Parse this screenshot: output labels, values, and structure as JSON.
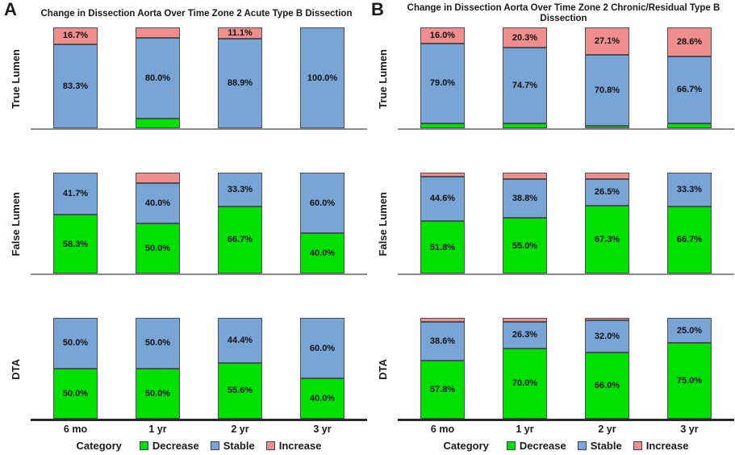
{
  "chart_data": {
    "type": "bar",
    "stacked": true,
    "orientation": "vertical",
    "unit": "percent",
    "ylim": [
      0,
      100
    ],
    "grid": false,
    "categories": [
      "6 mo",
      "1 yr",
      "2 yr",
      "3 yr"
    ],
    "x_axis_title": "Category",
    "series_names": [
      "Decrease",
      "Stable",
      "Increase"
    ],
    "colors": {
      "Decrease": "#00e100",
      "Stable": "#79a4d6",
      "Increase": "#f08d8d",
      "segment_border": "#4a4f57",
      "axis_thin": "#8a8a8a",
      "axis_thick": "#2b2b2b",
      "text": "#1a1a1a"
    },
    "legend": {
      "title": "Category",
      "entries": [
        "Decrease",
        "Stable",
        "Increase"
      ],
      "position": "bottom"
    },
    "panels": [
      {
        "panel_letter": "A",
        "title": "Change in Dissection Aorta Over Time Zone 2 Acute Type B Dissection",
        "rows": [
          {
            "ylabel": "True Lumen",
            "series": [
              {
                "name": "Decrease",
                "values": [
                  0,
                  10.0,
                  0,
                  0
                ],
                "labels": [
                  "",
                  "",
                  "",
                  ""
                ]
              },
              {
                "name": "Stable",
                "values": [
                  83.3,
                  80.0,
                  88.9,
                  100.0
                ],
                "labels": [
                  "83.3%",
                  "80.0%",
                  "88.9%",
                  "100.0%"
                ]
              },
              {
                "name": "Increase",
                "values": [
                  16.7,
                  10.0,
                  11.1,
                  0
                ],
                "labels": [
                  "16.7%",
                  "",
                  "11.1%",
                  ""
                ]
              }
            ]
          },
          {
            "ylabel": "False Lumen",
            "series": [
              {
                "name": "Decrease",
                "values": [
                  58.3,
                  50.0,
                  66.7,
                  40.0
                ],
                "labels": [
                  "58.3%",
                  "50.0%",
                  "66.7%",
                  "40.0%"
                ]
              },
              {
                "name": "Stable",
                "values": [
                  41.7,
                  40.0,
                  33.3,
                  60.0
                ],
                "labels": [
                  "41.7%",
                  "40.0%",
                  "33.3%",
                  "60.0%"
                ]
              },
              {
                "name": "Increase",
                "values": [
                  0,
                  10.0,
                  0,
                  0
                ],
                "labels": [
                  "",
                  "",
                  "",
                  ""
                ]
              }
            ]
          },
          {
            "ylabel": "DTA",
            "series": [
              {
                "name": "Decrease",
                "values": [
                  50.0,
                  50.0,
                  55.6,
                  40.0
                ],
                "labels": [
                  "50.0%",
                  "50.0%",
                  "55.6%",
                  "40.0%"
                ]
              },
              {
                "name": "Stable",
                "values": [
                  50.0,
                  50.0,
                  44.4,
                  60.0
                ],
                "labels": [
                  "50.0%",
                  "50.0%",
                  "44.4%",
                  "60.0%"
                ]
              },
              {
                "name": "Increase",
                "values": [
                  0,
                  0,
                  0,
                  0
                ],
                "labels": [
                  "",
                  "",
                  "",
                  ""
                ]
              }
            ]
          }
        ]
      },
      {
        "panel_letter": "B",
        "title": "Change in Dissection Aorta Over Time Zone 2 Chronic/Residual Type B Dissection",
        "rows": [
          {
            "ylabel": "True Lumen",
            "series": [
              {
                "name": "Decrease",
                "values": [
                  5.0,
                  5.0,
                  2.1,
                  4.7
                ],
                "labels": [
                  "",
                  "",
                  "",
                  ""
                ]
              },
              {
                "name": "Stable",
                "values": [
                  79.0,
                  74.7,
                  70.8,
                  66.7
                ],
                "labels": [
                  "79.0%",
                  "74.7%",
                  "70.8%",
                  "66.7%"
                ]
              },
              {
                "name": "Increase",
                "values": [
                  16.0,
                  20.3,
                  27.1,
                  28.6
                ],
                "labels": [
                  "16.0%",
                  "20.3%",
                  "27.1%",
                  "28.6%"
                ]
              }
            ]
          },
          {
            "ylabel": "False Lumen",
            "series": [
              {
                "name": "Decrease",
                "values": [
                  51.8,
                  55.0,
                  67.3,
                  66.7
                ],
                "labels": [
                  "51.8%",
                  "55.0%",
                  "67.3%",
                  "66.7%"
                ]
              },
              {
                "name": "Stable",
                "values": [
                  44.6,
                  38.8,
                  26.5,
                  33.3
                ],
                "labels": [
                  "44.6%",
                  "38.8%",
                  "26.5%",
                  "33.3%"
                ]
              },
              {
                "name": "Increase",
                "values": [
                  3.6,
                  6.2,
                  6.2,
                  0
                ],
                "labels": [
                  "",
                  "",
                  "",
                  ""
                ]
              }
            ]
          },
          {
            "ylabel": "DTA",
            "series": [
              {
                "name": "Decrease",
                "values": [
                  57.8,
                  70.0,
                  66.0,
                  75.0
                ],
                "labels": [
                  "57.8%",
                  "70.0%",
                  "66.0%",
                  "75.0%"
                ]
              },
              {
                "name": "Stable",
                "values": [
                  38.6,
                  26.3,
                  32.0,
                  25.0
                ],
                "labels": [
                  "38.6%",
                  "26.3%",
                  "32.0%",
                  "25.0%"
                ]
              },
              {
                "name": "Increase",
                "values": [
                  3.6,
                  3.7,
                  2.0,
                  0
                ],
                "labels": [
                  "",
                  "",
                  "",
                  ""
                ]
              }
            ]
          }
        ]
      }
    ]
  }
}
